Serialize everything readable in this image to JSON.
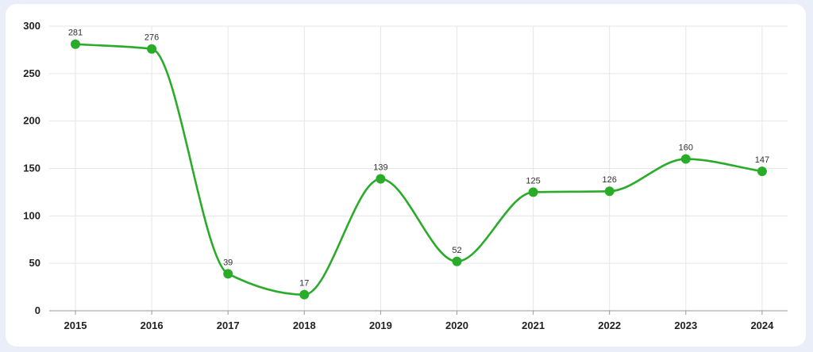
{
  "chart_data": {
    "type": "line",
    "categories": [
      "2015",
      "2016",
      "2017",
      "2018",
      "2019",
      "2020",
      "2021",
      "2022",
      "2023",
      "2024"
    ],
    "series": [
      {
        "values": [
          281,
          276,
          39,
          17,
          139,
          52,
          125,
          126,
          160,
          147
        ]
      }
    ],
    "yticks": [
      "0",
      "50",
      "100",
      "150",
      "200",
      "250",
      "300"
    ],
    "ylim": [
      0,
      300
    ],
    "grid": true,
    "smooth": true,
    "data_labels": true,
    "legend": "none"
  },
  "colors": {
    "line": "#2aab2a",
    "grid": "#e6e6e6",
    "axis": "#9a9a9a"
  }
}
